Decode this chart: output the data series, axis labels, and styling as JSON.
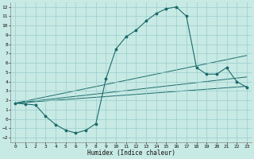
{
  "bg_color": "#c8eae4",
  "grid_color": "#99cccc",
  "line_color": "#1a6b6b",
  "xlabel": "Humidex (Indice chaleur)",
  "xlim": [
    -0.5,
    23.5
  ],
  "ylim": [
    -2.5,
    12.5
  ],
  "xticks": [
    0,
    1,
    2,
    3,
    4,
    5,
    6,
    7,
    8,
    9,
    10,
    11,
    12,
    13,
    14,
    15,
    16,
    17,
    18,
    19,
    20,
    21,
    22,
    23
  ],
  "yticks": [
    -2,
    -1,
    0,
    1,
    2,
    3,
    4,
    5,
    6,
    7,
    8,
    9,
    10,
    11,
    12
  ],
  "series1_x": [
    0,
    1,
    2,
    3,
    4,
    5,
    6,
    7,
    8,
    9,
    10,
    11,
    12,
    13,
    14,
    15,
    16,
    17,
    18,
    19,
    20,
    21,
    22,
    23
  ],
  "series1_y": [
    1.7,
    1.6,
    1.5,
    0.3,
    -0.6,
    -1.2,
    -1.5,
    -1.2,
    -0.5,
    4.3,
    7.5,
    8.8,
    9.5,
    10.5,
    11.3,
    11.8,
    12.0,
    11.0,
    5.5,
    4.8,
    4.8,
    5.5,
    4.0,
    3.4
  ],
  "line2_x": [
    0,
    23
  ],
  "line2_y": [
    1.7,
    6.8
  ],
  "line3_x": [
    0,
    23
  ],
  "line3_y": [
    1.7,
    4.5
  ],
  "line4_x": [
    0,
    23
  ],
  "line4_y": [
    1.7,
    3.5
  ]
}
